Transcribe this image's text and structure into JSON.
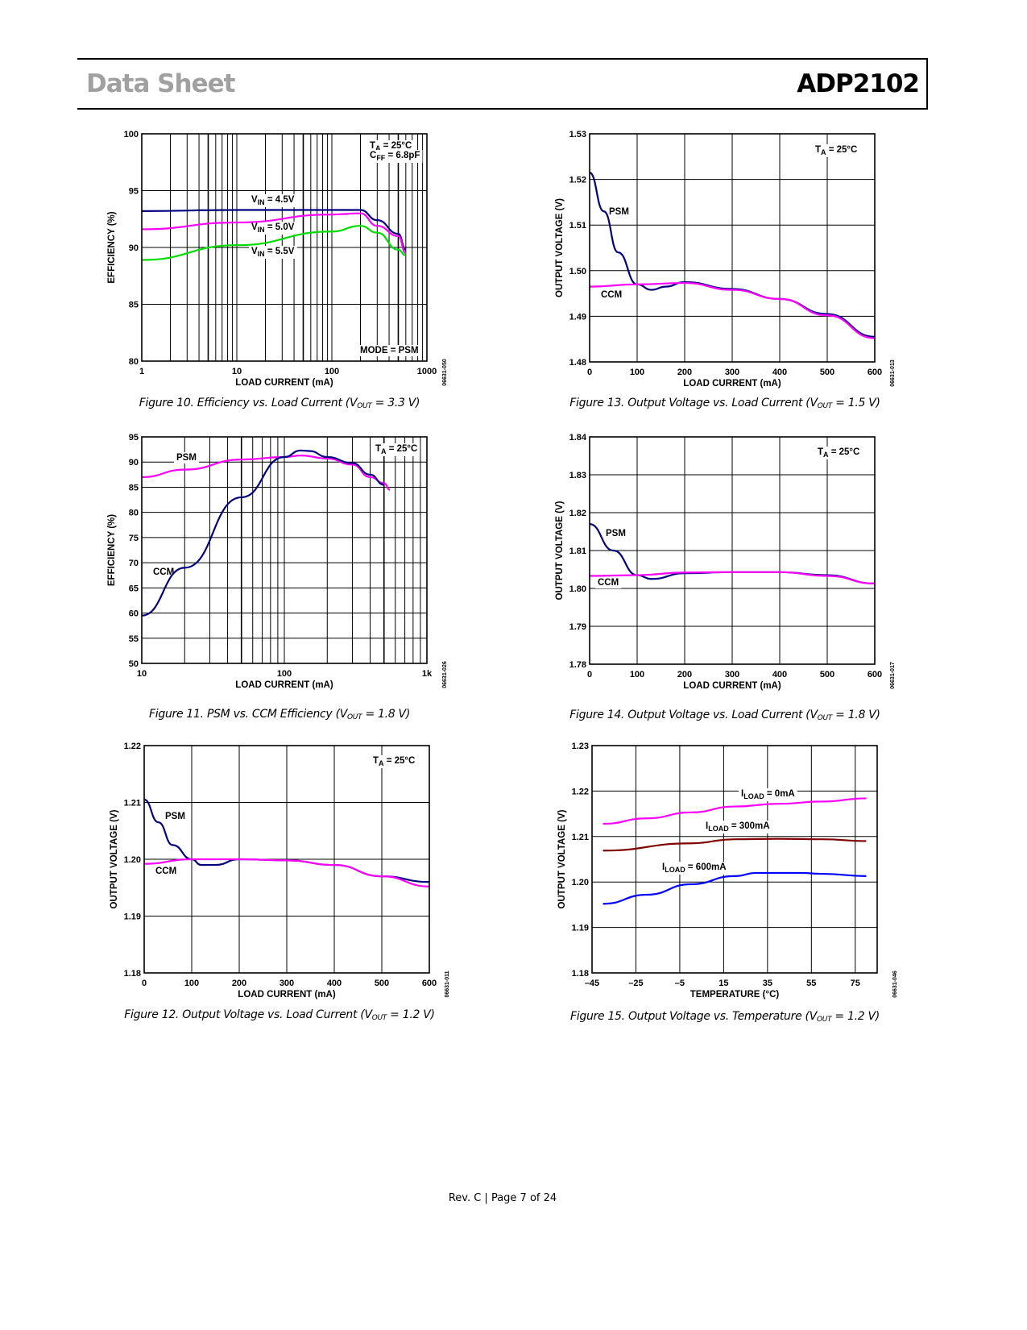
{
  "header": {
    "left": "Data Sheet",
    "right": "ADP2102"
  },
  "footer": "Rev. C | Page 7 of 24",
  "chart_data": [
    {
      "figure": "Figure 10",
      "type": "line",
      "caption": {
        "pre": "Figure 10. Efficiency vs. Load Current (V",
        "sub": "OUT",
        "post": " = 3.3 V)"
      },
      "xlabel": "LOAD CURRENT (mA)",
      "ylabel": "EFFICIENCY (%)",
      "xscale": "log",
      "xlim": [
        1,
        1000
      ],
      "ylim": [
        80,
        100
      ],
      "xticks": [
        1,
        10,
        100,
        1000
      ],
      "xtick_labels": [
        "1",
        "10",
        "100",
        "1000"
      ],
      "yticks": [
        80,
        85,
        90,
        95,
        100
      ],
      "ytick_labels": [
        "80",
        "85",
        "90",
        "95",
        "100"
      ],
      "grid": true,
      "figure_id": "06631-050",
      "annotations": [
        {
          "main": "T",
          "sub": "A",
          "rest": " = 25°C"
        },
        {
          "main": "C",
          "sub": "FF",
          "rest": " = 6.8pF"
        },
        {
          "main": "V",
          "sub": "IN",
          "rest": " = 4.5V"
        },
        {
          "main": "V",
          "sub": "IN",
          "rest": " = 5.0V"
        },
        {
          "main": "V",
          "sub": "IN",
          "rest": " = 5.5V"
        },
        {
          "main": "MODE = PSM",
          "sub": "",
          "rest": ""
        }
      ],
      "series": [
        {
          "name": "VIN = 4.5V",
          "color": "#000080",
          "x": [
            1,
            10,
            100,
            200,
            300,
            500,
            600
          ],
          "y": [
            93.2,
            93.3,
            93.3,
            93.3,
            92.4,
            91.2,
            89.8
          ]
        },
        {
          "name": "VIN = 5.0V",
          "color": "#ff00ff",
          "x": [
            1,
            10,
            100,
            200,
            300,
            500,
            600
          ],
          "y": [
            91.6,
            92.2,
            92.9,
            93.0,
            91.9,
            91.0,
            89.5
          ]
        },
        {
          "name": "VIN = 5.5V",
          "color": "#00dd00",
          "x": [
            1,
            10,
            100,
            200,
            300,
            500,
            600
          ],
          "y": [
            88.9,
            90.2,
            91.4,
            91.9,
            91.3,
            89.8,
            89.3
          ]
        }
      ]
    },
    {
      "figure": "Figure 11",
      "type": "line",
      "caption": {
        "pre": "Figure 11. PSM vs. CCM Efficiency (V",
        "sub": "OUT",
        "post": " = 1.8 V)"
      },
      "xlabel": "LOAD CURRENT (mA)",
      "ylabel": "EFFICIENCY (%)",
      "xscale": "log",
      "xlim": [
        10,
        1000
      ],
      "ylim": [
        50,
        95
      ],
      "xticks": [
        10,
        100,
        1000
      ],
      "xtick_labels": [
        "10",
        "100",
        "1k"
      ],
      "yticks": [
        50,
        55,
        60,
        65,
        70,
        75,
        80,
        85,
        90,
        95
      ],
      "ytick_labels": [
        "50",
        "55",
        "60",
        "65",
        "70",
        "75",
        "80",
        "85",
        "90",
        "95"
      ],
      "grid": true,
      "figure_id": "06631-026",
      "annotations": [
        {
          "main": "PSM",
          "sub": "",
          "rest": ""
        },
        {
          "main": "T",
          "sub": "A",
          "rest": " = 25°C"
        },
        {
          "main": "CCM",
          "sub": "",
          "rest": ""
        }
      ],
      "series": [
        {
          "name": "PSM",
          "color": "#ff00ff",
          "x": [
            10,
            20,
            50,
            100,
            130,
            200,
            300,
            400,
            500,
            550
          ],
          "y": [
            87,
            88.5,
            90.5,
            91,
            91.3,
            90.7,
            89.5,
            87,
            85.8,
            84.5
          ]
        },
        {
          "name": "CCM",
          "color": "#000080",
          "x": [
            10,
            20,
            50,
            100,
            130,
            150,
            200,
            300,
            400,
            500
          ],
          "y": [
            59.5,
            69,
            83,
            91,
            92.3,
            92.2,
            91,
            89.8,
            87.5,
            85.5
          ]
        }
      ]
    },
    {
      "figure": "Figure 12",
      "type": "line",
      "caption": {
        "pre": "Figure 12. Output Voltage vs. Load Current (V",
        "sub": "OUT",
        "post": " = 1.2 V)"
      },
      "xlabel": "LOAD CURRENT (mA)",
      "ylabel": "OUTPUT VOLTAGE (V)",
      "xscale": "linear",
      "xlim": [
        0,
        600
      ],
      "ylim": [
        1.18,
        1.22
      ],
      "xticks": [
        0,
        100,
        200,
        300,
        400,
        500,
        600
      ],
      "xtick_labels": [
        "0",
        "100",
        "200",
        "300",
        "400",
        "500",
        "600"
      ],
      "yticks": [
        1.18,
        1.19,
        1.2,
        1.21,
        1.22
      ],
      "ytick_labels": [
        "1.18",
        "1.19",
        "1.20",
        "1.21",
        "1.22"
      ],
      "grid": true,
      "figure_id": "06631-011",
      "annotations": [
        {
          "main": "T",
          "sub": "A",
          "rest": " = 25°C"
        },
        {
          "main": "PSM",
          "sub": "",
          "rest": ""
        },
        {
          "main": "CCM",
          "sub": "",
          "rest": ""
        }
      ],
      "series": [
        {
          "name": "PSM",
          "color": "#000080",
          "x": [
            0,
            30,
            60,
            100,
            120,
            150,
            200,
            300,
            400,
            500,
            600
          ],
          "y": [
            1.2105,
            1.2065,
            1.2025,
            1.2,
            1.199,
            1.199,
            1.2,
            1.1998,
            1.199,
            1.197,
            1.196
          ]
        },
        {
          "name": "CCM",
          "color": "#ff00ff",
          "x": [
            0,
            100,
            200,
            300,
            400,
            500,
            600
          ],
          "y": [
            1.1992,
            1.2,
            1.2,
            1.1998,
            1.199,
            1.197,
            1.1952
          ]
        }
      ]
    },
    {
      "figure": "Figure 13",
      "type": "line",
      "caption": {
        "pre": "Figure 13. Output Voltage vs. Load Current (V",
        "sub": "OUT",
        "post": " = 1.5 V)"
      },
      "xlabel": "LOAD CURRENT (mA)",
      "ylabel": "OUTPUT VOLTAGE (V)",
      "xscale": "linear",
      "xlim": [
        0,
        600
      ],
      "ylim": [
        1.48,
        1.53
      ],
      "xticks": [
        0,
        100,
        200,
        300,
        400,
        500,
        600
      ],
      "xtick_labels": [
        "0",
        "100",
        "200",
        "300",
        "400",
        "500",
        "600"
      ],
      "yticks": [
        1.48,
        1.49,
        1.5,
        1.51,
        1.52,
        1.53
      ],
      "ytick_labels": [
        "1.48",
        "1.49",
        "1.50",
        "1.51",
        "1.52",
        "1.53"
      ],
      "grid": true,
      "figure_id": "06631-013",
      "annotations": [
        {
          "main": "T",
          "sub": "A",
          "rest": " = 25°C"
        },
        {
          "main": "PSM",
          "sub": "",
          "rest": ""
        },
        {
          "main": "CCM",
          "sub": "",
          "rest": ""
        }
      ],
      "series": [
        {
          "name": "PSM",
          "color": "#000080",
          "x": [
            0,
            30,
            60,
            100,
            130,
            160,
            200,
            300,
            400,
            500,
            600
          ],
          "y": [
            1.5215,
            1.513,
            1.504,
            1.497,
            1.4958,
            1.4965,
            1.4975,
            1.496,
            1.4938,
            1.4905,
            1.4855
          ]
        },
        {
          "name": "CCM",
          "color": "#ff00ff",
          "x": [
            0,
            100,
            200,
            300,
            400,
            500,
            600
          ],
          "y": [
            1.4965,
            1.497,
            1.4973,
            1.4958,
            1.4938,
            1.4902,
            1.4852
          ]
        }
      ]
    },
    {
      "figure": "Figure 14",
      "type": "line",
      "caption": {
        "pre": "Figure 14. Output Voltage vs. Load Current (V",
        "sub": "OUT",
        "post": " = 1.8 V)"
      },
      "xlabel": "LOAD CURRENT (mA)",
      "ylabel": "OUTPUT VOLTAGE (V)",
      "xscale": "linear",
      "xlim": [
        0,
        600
      ],
      "ylim": [
        1.78,
        1.84
      ],
      "xticks": [
        0,
        100,
        200,
        300,
        400,
        500,
        600
      ],
      "xtick_labels": [
        "0",
        "100",
        "200",
        "300",
        "400",
        "500",
        "600"
      ],
      "yticks": [
        1.78,
        1.79,
        1.8,
        1.81,
        1.82,
        1.83,
        1.84
      ],
      "ytick_labels": [
        "1.78",
        "1.79",
        "1.80",
        "1.81",
        "1.82",
        "1.83",
        "1.84"
      ],
      "grid": true,
      "figure_id": "06631-017",
      "annotations": [
        {
          "main": "T",
          "sub": "A",
          "rest": " = 25°C"
        },
        {
          "main": "PSM",
          "sub": "",
          "rest": ""
        },
        {
          "main": "CCM",
          "sub": "",
          "rest": ""
        }
      ],
      "series": [
        {
          "name": "PSM",
          "color": "#000080",
          "x": [
            0,
            50,
            100,
            130,
            200,
            300,
            400,
            500,
            600
          ],
          "y": [
            1.817,
            1.81,
            1.8035,
            1.8025,
            1.804,
            1.8043,
            1.8043,
            1.8035,
            1.8013
          ]
        },
        {
          "name": "CCM",
          "color": "#ff00ff",
          "x": [
            0,
            100,
            200,
            300,
            400,
            500,
            600
          ],
          "y": [
            1.8033,
            1.8035,
            1.8042,
            1.8043,
            1.8043,
            1.8033,
            1.8013
          ]
        }
      ]
    },
    {
      "figure": "Figure 15",
      "type": "line",
      "caption": {
        "pre": "Figure 15. Output Voltage vs. Temperature (V",
        "sub": "OUT",
        "post": " = 1.2 V)"
      },
      "xlabel": "TEMPERATURE (°C)",
      "ylabel": "OUTPUT VOLTAGE (V)",
      "xscale": "linear",
      "xlim": [
        -45,
        85
      ],
      "ylim": [
        1.18,
        1.23
      ],
      "xticks": [
        -45,
        -25,
        -5,
        15,
        35,
        55,
        75
      ],
      "xtick_labels": [
        "–45",
        "–25",
        "–5",
        "15",
        "35",
        "55",
        "75"
      ],
      "yticks": [
        1.18,
        1.19,
        1.2,
        1.21,
        1.22,
        1.23
      ],
      "ytick_labels": [
        "1.18",
        "1.19",
        "1.20",
        "1.21",
        "1.22",
        "1.23"
      ],
      "grid": true,
      "figure_id": "06631-046",
      "annotations": [
        {
          "main": "I",
          "sub": "LOAD",
          "rest": " = 0mA"
        },
        {
          "main": "I",
          "sub": "LOAD",
          "rest": " = 300mA"
        },
        {
          "main": "I",
          "sub": "LOAD",
          "rest": " = 600mA"
        }
      ],
      "series": [
        {
          "name": "ILOAD = 0mA",
          "color": "#ff00ff",
          "x": [
            -40,
            -20,
            0,
            20,
            40,
            60,
            80
          ],
          "y": [
            1.2128,
            1.214,
            1.2153,
            1.2166,
            1.2172,
            1.2177,
            1.2184
          ]
        },
        {
          "name": "ILOAD = 300mA",
          "color": "#800000",
          "x": [
            -40,
            0,
            20,
            40,
            60,
            80
          ],
          "y": [
            1.2069,
            1.2085,
            1.2094,
            1.2095,
            1.2094,
            1.209
          ]
        },
        {
          "name": "ILOAD = 600mA",
          "color": "#0000ff",
          "x": [
            -40,
            -20,
            0,
            20,
            30,
            50,
            60,
            80
          ],
          "y": [
            1.1952,
            1.1972,
            1.1995,
            1.2013,
            1.202,
            1.202,
            1.2018,
            1.2013
          ]
        }
      ]
    }
  ]
}
